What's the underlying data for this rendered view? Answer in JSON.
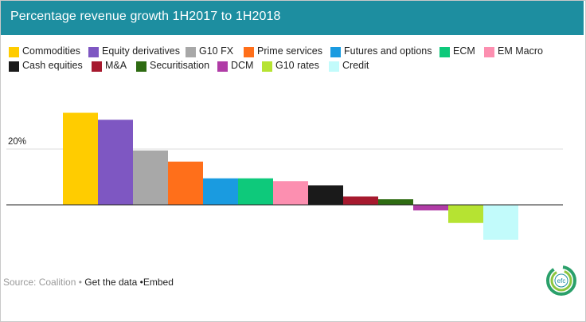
{
  "header": {
    "title": "Percentage revenue growth 1H2017 to 1H2018"
  },
  "footer": {
    "source": "Source: Coalition",
    "sep1": " • ",
    "get_data": "Get the data",
    "sep2": " •",
    "embed": "Embed"
  },
  "logo": {
    "text": "efc"
  },
  "colors": {
    "header_bg": "#1d8ea0"
  },
  "chart_data": {
    "type": "bar",
    "title": "Percentage revenue growth 1H2017 to 1H2018",
    "xlabel": "",
    "ylabel": "",
    "ylim": [
      -12,
      35
    ],
    "yticks": [
      {
        "value": 20,
        "label": "20%"
      }
    ],
    "grid": true,
    "legend_position": "top",
    "series": [
      {
        "name": "Commodities",
        "value": 33,
        "color": "#ffcc00"
      },
      {
        "name": "Equity derivatives",
        "value": 30.5,
        "color": "#7e57c2"
      },
      {
        "name": "G10 FX",
        "value": 19.5,
        "color": "#a8a8a8"
      },
      {
        "name": "Prime services",
        "value": 15.5,
        "color": "#ff6f1a"
      },
      {
        "name": "Futures and options",
        "value": 9.5,
        "color": "#1a9be0"
      },
      {
        "name": "ECM",
        "value": 9.5,
        "color": "#0ec97b"
      },
      {
        "name": "EM Macro",
        "value": 8.5,
        "color": "#fc8fb0"
      },
      {
        "name": "Cash equities",
        "value": 7,
        "color": "#1a1a1a"
      },
      {
        "name": "M&A",
        "value": 3,
        "color": "#a6192e"
      },
      {
        "name": "Securitisation",
        "value": 2,
        "color": "#2e6b12"
      },
      {
        "name": "DCM",
        "value": -2,
        "color": "#b03ca6"
      },
      {
        "name": "G10 rates",
        "value": -6.5,
        "color": "#b6e332"
      },
      {
        "name": "Credit",
        "value": -12.5,
        "color": "#c2fbfb"
      }
    ]
  }
}
